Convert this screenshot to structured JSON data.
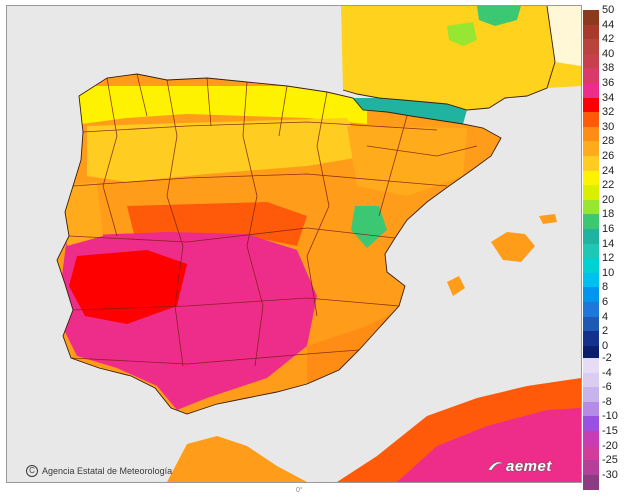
{
  "attribution": {
    "symbol": "C",
    "text": "Agencia Estatal de Meteorología"
  },
  "brand": {
    "name": "aemet",
    "icon": "aemet-logo-icon"
  },
  "bottom_mark": "0°",
  "legend": {
    "positive": [
      {
        "label": "50",
        "color": "#8b3a1e"
      },
      {
        "label": "44",
        "color": "#a83a2c"
      },
      {
        "label": "42",
        "color": "#b8443c"
      },
      {
        "label": "40",
        "color": "#c8404e"
      },
      {
        "label": "38",
        "color": "#d83a6a"
      },
      {
        "label": "36",
        "color": "#ee2c8a"
      },
      {
        "label": "34",
        "color": "#ff0000"
      },
      {
        "label": "32",
        "color": "#ff5a0a"
      },
      {
        "label": "30",
        "color": "#ff8c14"
      },
      {
        "label": "28",
        "color": "#ffab1c"
      },
      {
        "label": "26",
        "color": "#ffcc22"
      },
      {
        "label": "24",
        "color": "#fff200"
      },
      {
        "label": "22",
        "color": "#d8f000"
      },
      {
        "label": "20",
        "color": "#96e632"
      },
      {
        "label": "18",
        "color": "#3cc873"
      },
      {
        "label": "16",
        "color": "#20b4a0"
      },
      {
        "label": "14",
        "color": "#1ec8b4"
      },
      {
        "label": "12",
        "color": "#00d2d2"
      },
      {
        "label": "10",
        "color": "#00c0f0"
      },
      {
        "label": "8",
        "color": "#0096f0"
      },
      {
        "label": "6",
        "color": "#1e78dc"
      },
      {
        "label": "4",
        "color": "#1e5ab4"
      },
      {
        "label": "2",
        "color": "#14328c"
      },
      {
        "label": "0",
        "color": "#0a1e6e"
      }
    ],
    "negative": [
      {
        "label": "-2",
        "color": "#e6dcf5"
      },
      {
        "label": "-4",
        "color": "#dccdf0"
      },
      {
        "label": "-6",
        "color": "#c8b4ec"
      },
      {
        "label": "-8",
        "color": "#b48ce6"
      },
      {
        "label": "-10",
        "color": "#9a50e0"
      },
      {
        "label": "-15",
        "color": "#c83cb4"
      },
      {
        "label": "-20",
        "color": "#d23c9a"
      },
      {
        "label": "-25",
        "color": "#b4409a"
      },
      {
        "label": "-30",
        "color": "#8c3c82"
      }
    ]
  }
}
